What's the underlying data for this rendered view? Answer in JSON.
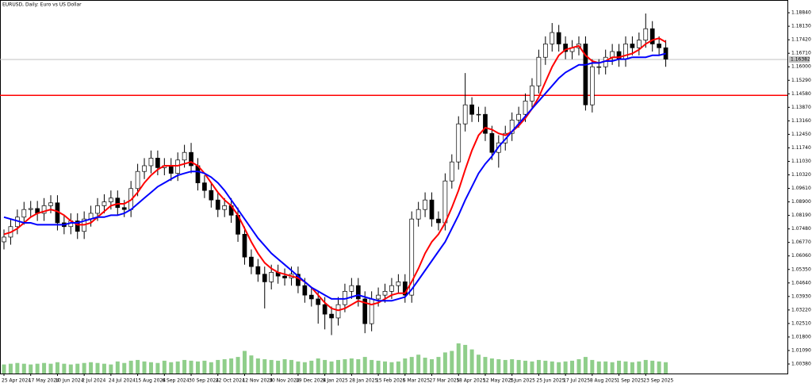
{
  "chart_data": {
    "type": "candlestick",
    "title": "EURUSD, Daily: Euro vs US Dollar",
    "categories": [
      "25 Apr 2024",
      null,
      null,
      null,
      "17 May 2024",
      null,
      null,
      null,
      "10 Jun 2024",
      null,
      null,
      null,
      "2 Jul 2024",
      null,
      null,
      null,
      "24 Jul 2024",
      null,
      null,
      null,
      "15 Aug 2024",
      null,
      null,
      null,
      "6 Sep 2024",
      null,
      null,
      null,
      "30 Sep 2024",
      null,
      null,
      null,
      "22 Oct 2024",
      null,
      null,
      null,
      "12 Nov 2024",
      null,
      null,
      null,
      "30 Nov 2024",
      null,
      null,
      null,
      "19 Dec 2024",
      null,
      null,
      null,
      "9 Jan 2025",
      null,
      null,
      null,
      "28 Jan 2025",
      null,
      null,
      null,
      "15 Feb 2025",
      null,
      null,
      null,
      "6 Mar 2025",
      null,
      null,
      null,
      "27 Mar 2025",
      null,
      null,
      null,
      "18 Apr 2025",
      null,
      null,
      null,
      "12 May 2025",
      null,
      null,
      null,
      "3 Jun 2025",
      null,
      null,
      null,
      "25 Jun 2025",
      null,
      null,
      null,
      "17 Jul 2025",
      null,
      null,
      null,
      "8 Aug 2025",
      null,
      null,
      null,
      "1 Sep 2025",
      null,
      null,
      null,
      "23 Sep 2025",
      null,
      null,
      null
    ],
    "open": [
      1.068,
      1.0705,
      1.076,
      1.081,
      1.085,
      1.0855,
      1.083,
      1.087,
      1.0885,
      1.078,
      1.076,
      1.079,
      1.0735,
      1.08,
      1.083,
      1.087,
      1.089,
      1.091,
      1.086,
      1.085,
      1.096,
      1.105,
      1.108,
      1.112,
      1.107,
      1.108,
      1.104,
      1.111,
      1.115,
      1.108,
      1.099,
      1.095,
      1.09,
      1.085,
      1.087,
      1.082,
      1.072,
      1.06,
      1.055,
      1.051,
      1.047,
      1.052,
      1.05,
      1.049,
      1.051,
      1.045,
      1.04,
      1.038,
      1.035,
      1.03,
      1.028,
      1.035,
      1.042,
      1.045,
      1.038,
      1.025,
      1.038,
      1.04,
      1.042,
      1.045,
      1.047,
      1.04,
      1.08,
      1.085,
      1.09,
      1.08,
      1.078,
      1.1,
      1.11,
      1.13,
      1.14,
      1.135,
      1.135,
      1.125,
      1.115,
      1.12,
      1.125,
      1.132,
      1.135,
      1.142,
      1.15,
      1.165,
      1.172,
      1.178,
      1.172,
      1.168,
      1.17,
      1.172,
      1.14,
      1.16,
      1.16,
      1.165,
      1.168,
      1.164,
      1.172,
      1.17,
      1.174,
      1.18,
      1.172,
      1.17
    ],
    "high": [
      1.0745,
      1.08,
      1.085,
      1.089,
      1.0895,
      1.0895,
      1.091,
      1.0925,
      1.0925,
      1.082,
      1.083,
      1.083,
      1.084,
      1.087,
      1.091,
      1.093,
      1.095,
      1.095,
      1.09,
      1.1,
      1.109,
      1.112,
      1.116,
      1.116,
      1.112,
      1.112,
      1.115,
      1.119,
      1.12,
      1.112,
      1.103,
      1.099,
      1.094,
      1.091,
      1.091,
      1.086,
      1.076,
      1.064,
      1.059,
      1.055,
      1.056,
      1.056,
      1.054,
      1.055,
      1.055,
      1.049,
      1.044,
      1.042,
      1.039,
      1.034,
      1.039,
      1.046,
      1.049,
      1.049,
      1.042,
      1.042,
      1.044,
      1.046,
      1.049,
      1.051,
      1.051,
      1.084,
      1.089,
      1.094,
      1.094,
      1.084,
      1.104,
      1.114,
      1.134,
      1.1567,
      1.144,
      1.139,
      1.139,
      1.129,
      1.124,
      1.129,
      1.136,
      1.139,
      1.146,
      1.154,
      1.169,
      1.176,
      1.183,
      1.182,
      1.176,
      1.174,
      1.176,
      1.176,
      1.164,
      1.164,
      1.169,
      1.172,
      1.172,
      1.176,
      1.176,
      1.178,
      1.188,
      1.184,
      1.176,
      1.174
    ],
    "low": [
      1.064,
      1.0665,
      1.072,
      1.077,
      1.081,
      1.079,
      1.079,
      1.083,
      1.074,
      1.072,
      1.072,
      1.0695,
      1.0695,
      1.076,
      1.079,
      1.083,
      1.085,
      1.082,
      1.081,
      1.081,
      1.092,
      1.101,
      1.104,
      1.103,
      1.103,
      1.1,
      1.1,
      1.107,
      1.104,
      1.095,
      1.091,
      1.086,
      1.081,
      1.081,
      1.078,
      1.068,
      1.056,
      1.051,
      1.047,
      1.033,
      1.043,
      1.046,
      1.045,
      1.045,
      1.041,
      1.036,
      1.034,
      1.025,
      1.022,
      1.019,
      1.024,
      1.031,
      1.038,
      1.034,
      1.02,
      1.021,
      1.034,
      1.036,
      1.038,
      1.041,
      1.036,
      1.036,
      1.076,
      1.081,
      1.076,
      1.074,
      1.074,
      1.096,
      1.106,
      1.126,
      1.131,
      1.131,
      1.121,
      1.111,
      1.107,
      1.116,
      1.121,
      1.128,
      1.131,
      1.138,
      1.146,
      1.161,
      1.168,
      1.168,
      1.164,
      1.164,
      1.166,
      1.137,
      1.136,
      1.156,
      1.156,
      1.161,
      1.16,
      1.16,
      1.166,
      1.166,
      1.17,
      1.168,
      1.166,
      1.16
    ],
    "close": [
      1.0705,
      1.076,
      1.081,
      1.085,
      1.0855,
      1.083,
      1.087,
      1.0885,
      1.078,
      1.076,
      1.079,
      1.0735,
      1.08,
      1.083,
      1.087,
      1.089,
      1.091,
      1.086,
      1.085,
      1.096,
      1.105,
      1.108,
      1.112,
      1.107,
      1.108,
      1.104,
      1.111,
      1.115,
      1.108,
      1.099,
      1.095,
      1.09,
      1.085,
      1.087,
      1.082,
      1.072,
      1.06,
      1.055,
      1.051,
      1.047,
      1.052,
      1.05,
      1.049,
      1.051,
      1.045,
      1.04,
      1.038,
      1.035,
      1.03,
      1.028,
      1.035,
      1.042,
      1.045,
      1.038,
      1.025,
      1.038,
      1.04,
      1.042,
      1.045,
      1.047,
      1.04,
      1.08,
      1.085,
      1.09,
      1.08,
      1.078,
      1.1,
      1.11,
      1.13,
      1.14,
      1.135,
      1.135,
      1.125,
      1.115,
      1.12,
      1.125,
      1.132,
      1.135,
      1.142,
      1.15,
      1.165,
      1.172,
      1.178,
      1.172,
      1.168,
      1.17,
      1.172,
      1.14,
      1.16,
      1.16,
      1.165,
      1.168,
      1.164,
      1.172,
      1.17,
      1.174,
      1.18,
      1.172,
      1.17,
      1.164
    ],
    "volume": [
      12,
      13,
      14,
      13,
      12,
      13,
      14,
      13,
      15,
      13,
      12,
      13,
      14,
      15,
      14,
      13,
      12,
      16,
      14,
      17,
      18,
      16,
      15,
      14,
      17,
      15,
      16,
      18,
      17,
      16,
      17,
      15,
      18,
      19,
      20,
      22,
      30,
      24,
      20,
      19,
      18,
      17,
      19,
      18,
      16,
      15,
      17,
      20,
      18,
      16,
      18,
      19,
      20,
      19,
      22,
      18,
      17,
      16,
      15,
      16,
      20,
      22,
      25,
      21,
      19,
      22,
      28,
      30,
      40,
      38,
      32,
      25,
      22,
      20,
      19,
      18,
      19,
      18,
      17,
      16,
      18,
      17,
      16,
      15,
      16,
      17,
      19,
      22,
      18,
      16,
      16,
      15,
      17,
      16,
      15,
      16,
      18,
      17,
      16,
      15
    ],
    "up_color": "#ffffff",
    "down_color": "#000000",
    "volume_color": "#8fce8a",
    "series": [
      {
        "color": "#ff0000",
        "values": [
          1.072,
          1.073,
          1.075,
          1.078,
          1.081,
          1.083,
          1.084,
          1.085,
          1.084,
          1.082,
          1.079,
          1.077,
          1.077,
          1.078,
          1.081,
          1.084,
          1.087,
          1.088,
          1.088,
          1.09,
          1.094,
          1.099,
          1.103,
          1.106,
          1.108,
          1.108,
          1.108,
          1.109,
          1.11,
          1.108,
          1.104,
          1.099,
          1.094,
          1.09,
          1.087,
          1.082,
          1.075,
          1.068,
          1.062,
          1.057,
          1.054,
          1.052,
          1.051,
          1.05,
          1.049,
          1.047,
          1.044,
          1.04,
          1.036,
          1.033,
          1.032,
          1.033,
          1.035,
          1.037,
          1.036,
          1.035,
          1.036,
          1.038,
          1.04,
          1.041,
          1.041,
          1.047,
          1.054,
          1.062,
          1.068,
          1.072,
          1.078,
          1.086,
          1.095,
          1.106,
          1.116,
          1.124,
          1.128,
          1.127,
          1.125,
          1.124,
          1.126,
          1.129,
          1.133,
          1.138,
          1.144,
          1.152,
          1.16,
          1.166,
          1.169,
          1.17,
          1.171,
          1.166,
          1.163,
          1.162,
          1.163,
          1.165,
          1.165,
          1.166,
          1.167,
          1.169,
          1.172,
          1.174,
          1.175,
          1.173
        ]
      },
      {
        "color": "#0000ff",
        "values": [
          1.081,
          1.08,
          1.079,
          1.078,
          1.078,
          1.077,
          1.077,
          1.077,
          1.077,
          1.077,
          1.078,
          1.078,
          1.079,
          1.08,
          1.081,
          1.081,
          1.082,
          1.082,
          1.083,
          1.085,
          1.088,
          1.091,
          1.094,
          1.097,
          1.099,
          1.101,
          1.103,
          1.104,
          1.105,
          1.105,
          1.104,
          1.102,
          1.099,
          1.095,
          1.09,
          1.085,
          1.08,
          1.075,
          1.07,
          1.066,
          1.062,
          1.059,
          1.056,
          1.053,
          1.05,
          1.047,
          1.044,
          1.042,
          1.04,
          1.038,
          1.038,
          1.038,
          1.039,
          1.04,
          1.039,
          1.038,
          1.037,
          1.037,
          1.037,
          1.038,
          1.039,
          1.043,
          1.048,
          1.053,
          1.058,
          1.063,
          1.068,
          1.075,
          1.082,
          1.09,
          1.097,
          1.104,
          1.109,
          1.113,
          1.118,
          1.122,
          1.126,
          1.13,
          1.134,
          1.138,
          1.142,
          1.146,
          1.15,
          1.154,
          1.157,
          1.159,
          1.161,
          1.161,
          1.162,
          1.162,
          1.163,
          1.163,
          1.164,
          1.164,
          1.165,
          1.165,
          1.165,
          1.166,
          1.166,
          1.167
        ]
      }
    ],
    "hline": {
      "value": 1.145,
      "color": "#ff0000"
    },
    "last_price": {
      "value": 1.16382,
      "label": "1.16382"
    },
    "ylim": [
      0.9988,
      1.1951
    ],
    "yticks": [
      {
        "value": 1.1884,
        "label": "1.18840"
      },
      {
        "value": 1.1813,
        "label": "1.18130"
      },
      {
        "value": 1.1742,
        "label": "1.17420"
      },
      {
        "value": 1.1671,
        "label": "1.16710"
      },
      {
        "value": 1.16,
        "label": "1.16000"
      },
      {
        "value": 1.1529,
        "label": "1.15290"
      },
      {
        "value": 1.1458,
        "label": "1.14580"
      },
      {
        "value": 1.1387,
        "label": "1.13870"
      },
      {
        "value": 1.1316,
        "label": "1.13160"
      },
      {
        "value": 1.1245,
        "label": "1.12450"
      },
      {
        "value": 1.1174,
        "label": "1.11740"
      },
      {
        "value": 1.1103,
        "label": "1.11030"
      },
      {
        "value": 1.1032,
        "label": "1.10320"
      },
      {
        "value": 1.0961,
        "label": "1.09610"
      },
      {
        "value": 1.089,
        "label": "1.08900"
      },
      {
        "value": 1.0819,
        "label": "1.08190"
      },
      {
        "value": 1.0748,
        "label": "1.07480"
      },
      {
        "value": 1.0677,
        "label": "1.06770"
      },
      {
        "value": 1.0606,
        "label": "1.06060"
      },
      {
        "value": 1.0535,
        "label": "1.05350"
      },
      {
        "value": 1.0464,
        "label": "1.04640"
      },
      {
        "value": 1.0393,
        "label": "1.03930"
      },
      {
        "value": 1.0322,
        "label": "1.03220"
      },
      {
        "value": 1.0251,
        "label": "1.02510"
      },
      {
        "value": 1.018,
        "label": "1.01800"
      },
      {
        "value": 1.0109,
        "label": "1.01090"
      },
      {
        "value": 1.0038,
        "label": "1.00380"
      }
    ]
  }
}
